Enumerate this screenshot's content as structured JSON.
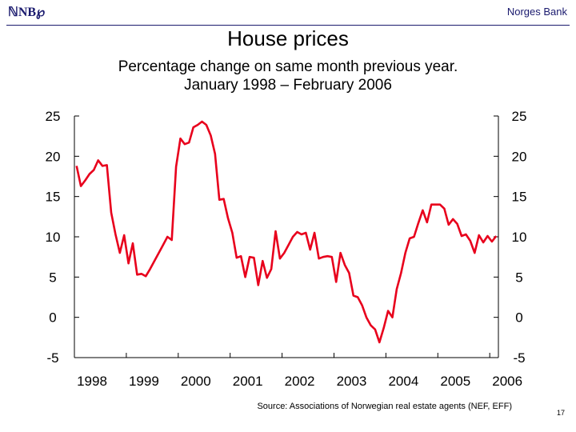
{
  "header": {
    "logo_text": "ℕNB℘",
    "bank_name": "Norges Bank"
  },
  "title": "House prices",
  "subtitle_line1": "Percentage change on same month previous year.",
  "subtitle_line2": "January 1998 – February 2006",
  "source": "Source: Associations of Norwegian real estate agents (NEF, EFF)",
  "page_number": "17",
  "colors": {
    "series": "#e8001c",
    "axis": "#000000",
    "brand": "#1a1a6e"
  },
  "chart_data": {
    "type": "line",
    "title": "House prices",
    "xlabel": "",
    "ylabel": "",
    "ylim": [
      -5,
      25
    ],
    "yticks": [
      25,
      20,
      15,
      10,
      5,
      0,
      -5
    ],
    "xlim": [
      "1998-01",
      "2006-02"
    ],
    "xticks": [
      "1998",
      "1999",
      "2000",
      "2001",
      "2002",
      "2003",
      "2004",
      "2005",
      "2006"
    ],
    "grid": false,
    "legend": "none",
    "series": [
      {
        "values": [
          [
            "1998-01",
            18.8
          ],
          [
            "1998-02",
            16.3
          ],
          [
            "1998-03",
            17.0
          ],
          [
            "1998-04",
            17.8
          ],
          [
            "1998-05",
            18.3
          ],
          [
            "1998-06",
            19.5
          ],
          [
            "1998-07",
            18.8
          ],
          [
            "1998-08",
            18.9
          ],
          [
            "1998-09",
            13.0
          ],
          [
            "1998-10",
            10.3
          ],
          [
            "1998-11",
            8.0
          ],
          [
            "1998-12",
            10.2
          ],
          [
            "1999-01",
            6.7
          ],
          [
            "1999-02",
            9.2
          ],
          [
            "1999-03",
            5.3
          ],
          [
            "1999-04",
            5.4
          ],
          [
            "1999-05",
            5.1
          ],
          [
            "1999-06",
            6.0
          ],
          [
            "1999-07",
            7.0
          ],
          [
            "1999-08",
            8.0
          ],
          [
            "1999-09",
            9.0
          ],
          [
            "1999-10",
            10.0
          ],
          [
            "1999-11",
            9.6
          ],
          [
            "1999-12",
            18.7
          ],
          [
            "2000-01",
            22.2
          ],
          [
            "2000-02",
            21.5
          ],
          [
            "2000-03",
            21.7
          ],
          [
            "2000-04",
            23.6
          ],
          [
            "2000-05",
            23.9
          ],
          [
            "2000-06",
            24.3
          ],
          [
            "2000-07",
            23.9
          ],
          [
            "2000-08",
            22.6
          ],
          [
            "2000-09",
            20.3
          ],
          [
            "2000-10",
            14.6
          ],
          [
            "2000-11",
            14.7
          ],
          [
            "2000-12",
            12.3
          ],
          [
            "2001-01",
            10.5
          ],
          [
            "2001-02",
            7.4
          ],
          [
            "2001-03",
            7.6
          ],
          [
            "2001-04",
            5.0
          ],
          [
            "2001-05",
            7.5
          ],
          [
            "2001-06",
            7.4
          ],
          [
            "2001-07",
            4.0
          ],
          [
            "2001-08",
            7.0
          ],
          [
            "2001-09",
            4.9
          ],
          [
            "2001-10",
            6.0
          ],
          [
            "2001-11",
            10.7
          ],
          [
            "2001-12",
            7.3
          ],
          [
            "2002-01",
            8.0
          ],
          [
            "2002-02",
            9.0
          ],
          [
            "2002-03",
            10.0
          ],
          [
            "2002-04",
            10.6
          ],
          [
            "2002-05",
            10.3
          ],
          [
            "2002-06",
            10.5
          ],
          [
            "2002-07",
            8.4
          ],
          [
            "2002-08",
            10.5
          ],
          [
            "2002-09",
            7.3
          ],
          [
            "2002-10",
            7.5
          ],
          [
            "2002-11",
            7.6
          ],
          [
            "2002-12",
            7.5
          ],
          [
            "2003-01",
            4.4
          ],
          [
            "2003-02",
            8.0
          ],
          [
            "2003-03",
            6.5
          ],
          [
            "2003-04",
            5.5
          ],
          [
            "2003-05",
            2.7
          ],
          [
            "2003-06",
            2.5
          ],
          [
            "2003-07",
            1.5
          ],
          [
            "2003-08",
            0.0
          ],
          [
            "2003-09",
            -1.0
          ],
          [
            "2003-10",
            -1.5
          ],
          [
            "2003-11",
            -3.1
          ],
          [
            "2003-12",
            -1.3
          ],
          [
            "2004-01",
            0.8
          ],
          [
            "2004-02",
            0.0
          ],
          [
            "2004-03",
            3.5
          ],
          [
            "2004-04",
            5.5
          ],
          [
            "2004-05",
            8.0
          ],
          [
            "2004-06",
            9.8
          ],
          [
            "2004-07",
            10.0
          ],
          [
            "2004-08",
            11.7
          ],
          [
            "2004-09",
            13.3
          ],
          [
            "2004-10",
            11.8
          ],
          [
            "2004-11",
            14.0
          ],
          [
            "2004-12",
            14.0
          ],
          [
            "2005-01",
            14.0
          ],
          [
            "2005-02",
            13.5
          ],
          [
            "2005-03",
            11.5
          ],
          [
            "2005-04",
            12.2
          ],
          [
            "2005-05",
            11.6
          ],
          [
            "2005-06",
            10.1
          ],
          [
            "2005-07",
            10.3
          ],
          [
            "2005-08",
            9.5
          ],
          [
            "2005-09",
            8.0
          ],
          [
            "2005-10",
            10.2
          ],
          [
            "2005-11",
            9.3
          ],
          [
            "2005-12",
            10.1
          ],
          [
            "2006-01",
            9.4
          ],
          [
            "2006-02",
            10.1
          ]
        ]
      }
    ]
  }
}
